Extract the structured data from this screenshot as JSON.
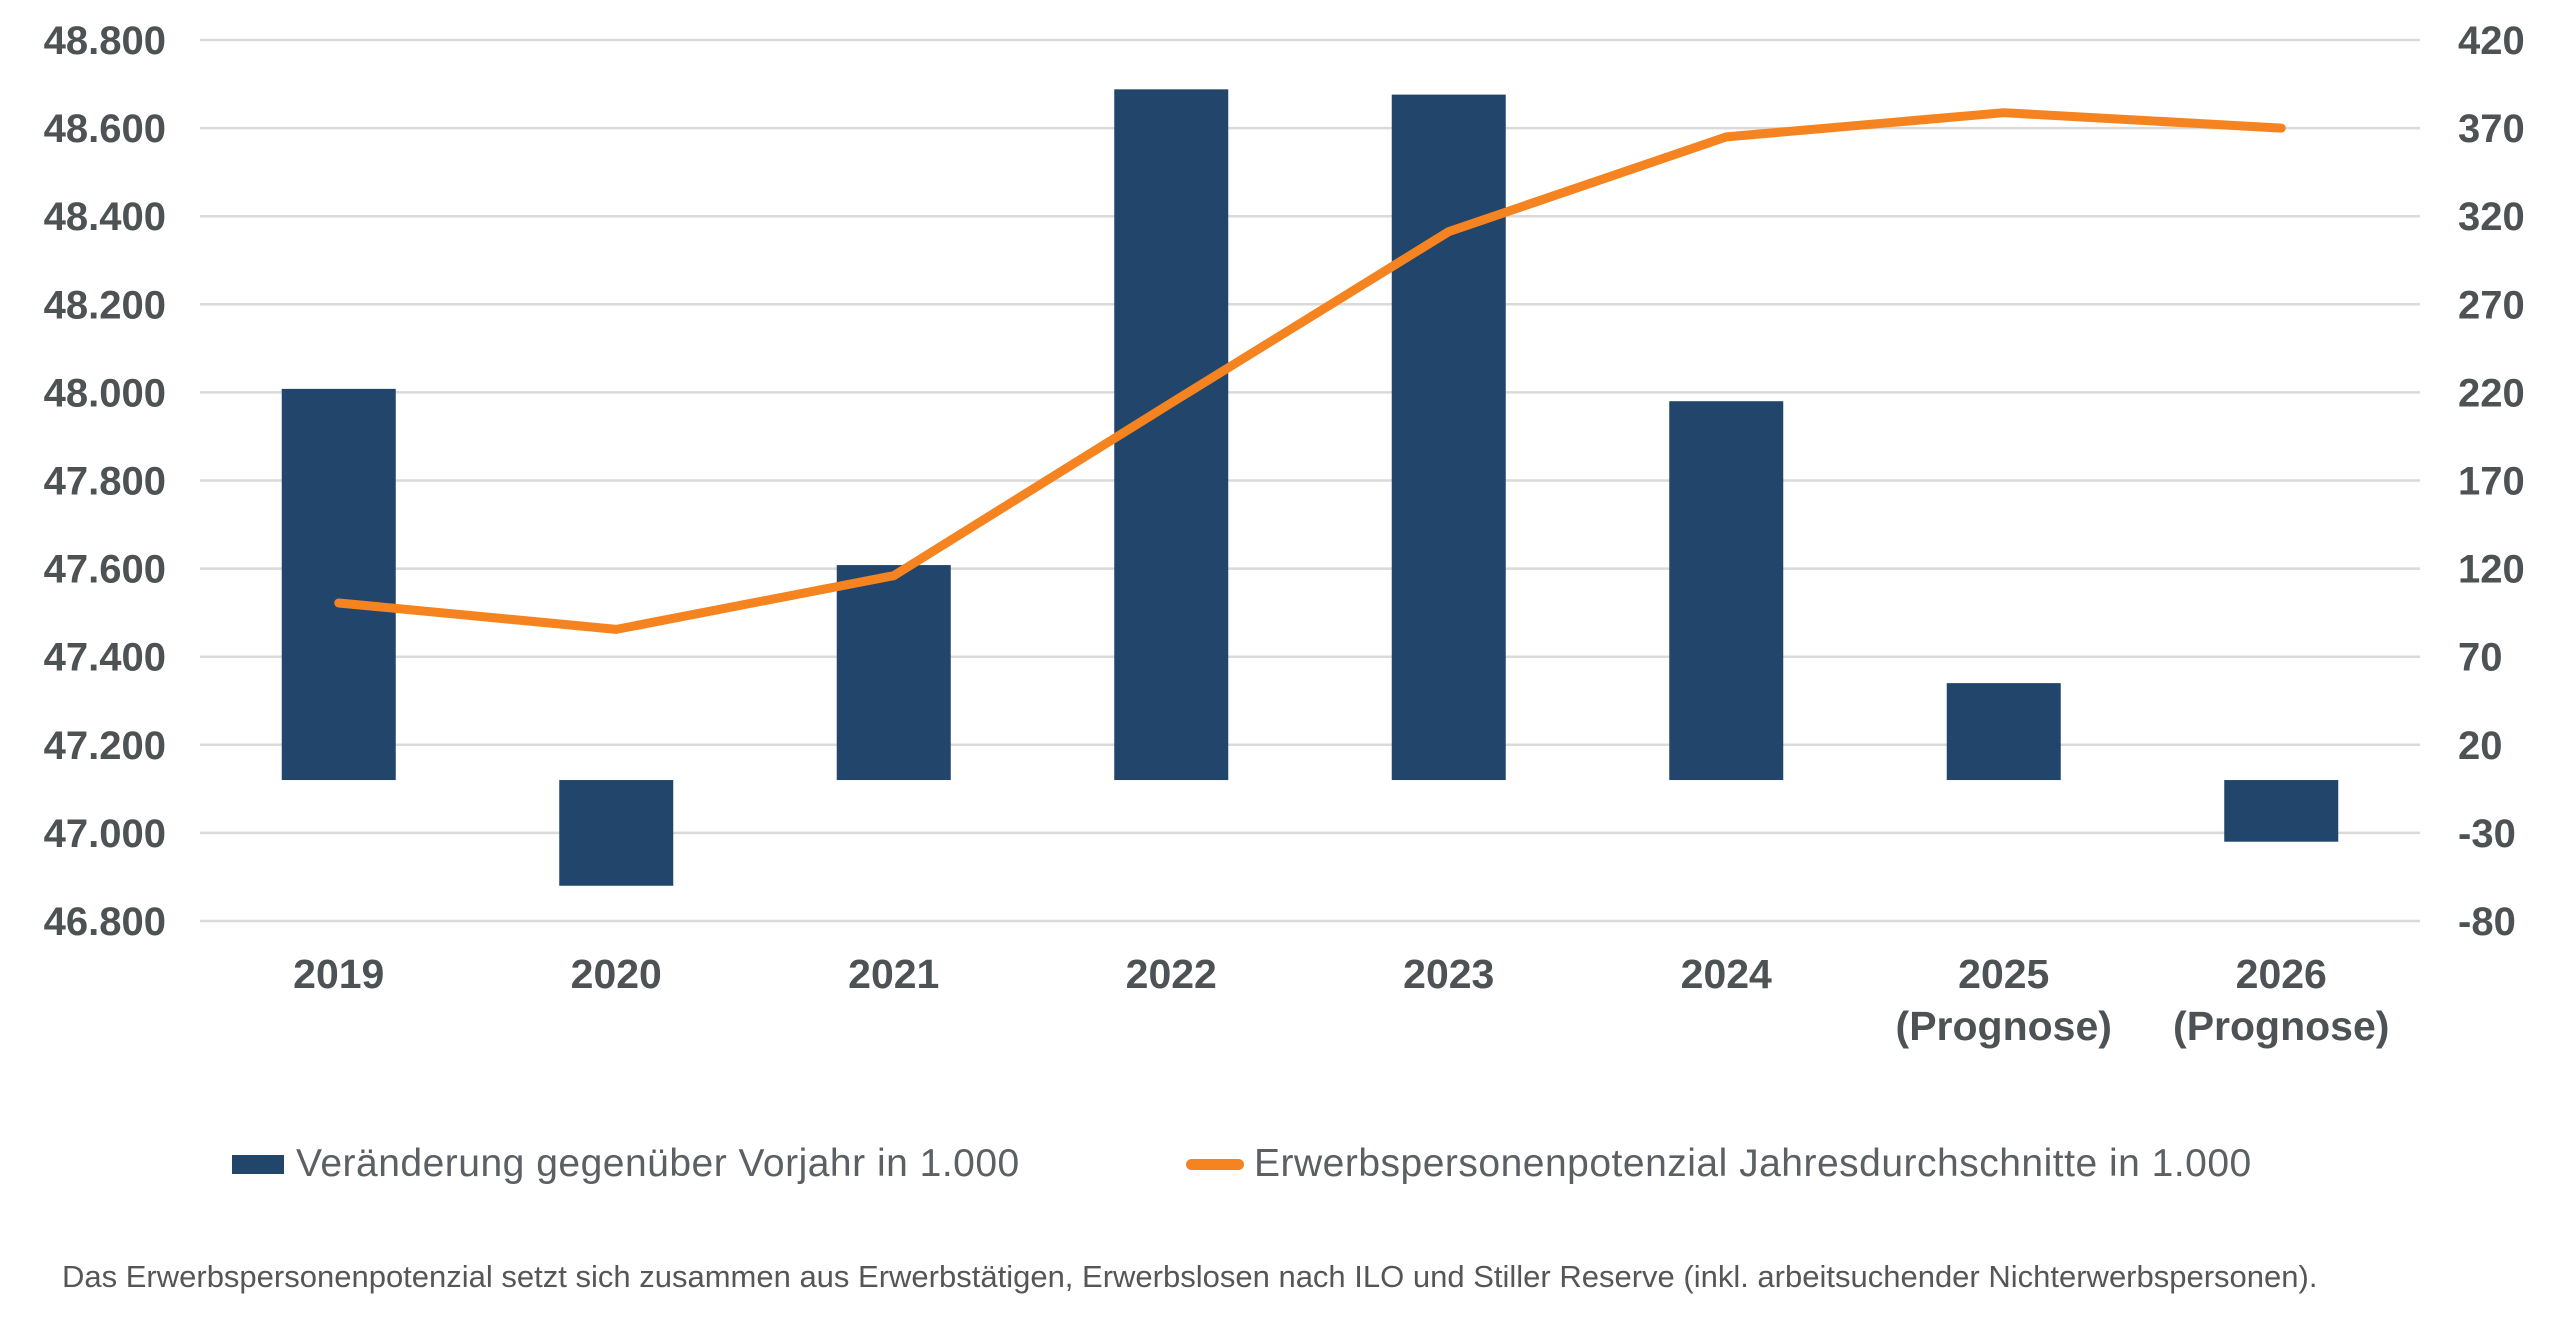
{
  "chart_data": {
    "type": "combo-bar-line",
    "categories": [
      {
        "label": "2019"
      },
      {
        "label": "2020"
      },
      {
        "label": "2021"
      },
      {
        "label": "2022"
      },
      {
        "label": "2023"
      },
      {
        "label": "2024"
      },
      {
        "label": "2025",
        "sub": "(Prognose)"
      },
      {
        "label": "2026",
        "sub": "(Prognose)"
      }
    ],
    "series": [
      {
        "name": "Veränderung gegenüber Vorjahr in 1.000",
        "type": "bar",
        "axis": "right",
        "color": "#21456B",
        "values": [
          222,
          -60,
          122,
          392,
          389,
          215,
          55,
          -35
        ]
      },
      {
        "name": "Erwerbspersonenpotenzial Jahresdurchschnitte in 1.000",
        "type": "line",
        "axis": "left",
        "color": "#F5831F",
        "values": [
          47522,
          47462,
          47584,
          47976,
          48365,
          48580,
          48635,
          48600
        ]
      }
    ],
    "left_axis": {
      "min": 46800,
      "max": 48800,
      "step": 200,
      "tick_labels": [
        "48.800",
        "48.600",
        "48.400",
        "48.200",
        "48.000",
        "47.800",
        "47.600",
        "47.400",
        "47.200",
        "47.000",
        "46.800"
      ]
    },
    "right_axis": {
      "min": -80,
      "max": 420,
      "step": 50,
      "tick_labels": [
        "420",
        "370",
        "320",
        "270",
        "220",
        "170",
        "120",
        "70",
        "20",
        "-30",
        "-80"
      ]
    },
    "grid": "horizontal",
    "legend_position": "bottom"
  },
  "legend": {
    "items": [
      {
        "label": "Veränderung gegenüber Vorjahr in 1.000",
        "swatch": "bar",
        "color": "#21456B"
      },
      {
        "label": "Erwerbspersonenpotenzial Jahresdurchschnitte in 1.000",
        "swatch": "line",
        "color": "#F5831F"
      }
    ]
  },
  "footer": {
    "note": "Das Erwerbspersonenpotenzial setzt sich zusammen aus Erwerbstätigen, Erwerbslosen nach ILO und Stiller Reserve (inkl. arbeitsuchender Nichterwerbspersonen)."
  },
  "colors": {
    "bar": "#21456B",
    "line": "#F5831F",
    "grid": "#DADADA",
    "tick_text": "#4D5254",
    "legend_text": "#5B6063",
    "footer_text": "#565656",
    "background": "#FFFFFF"
  }
}
